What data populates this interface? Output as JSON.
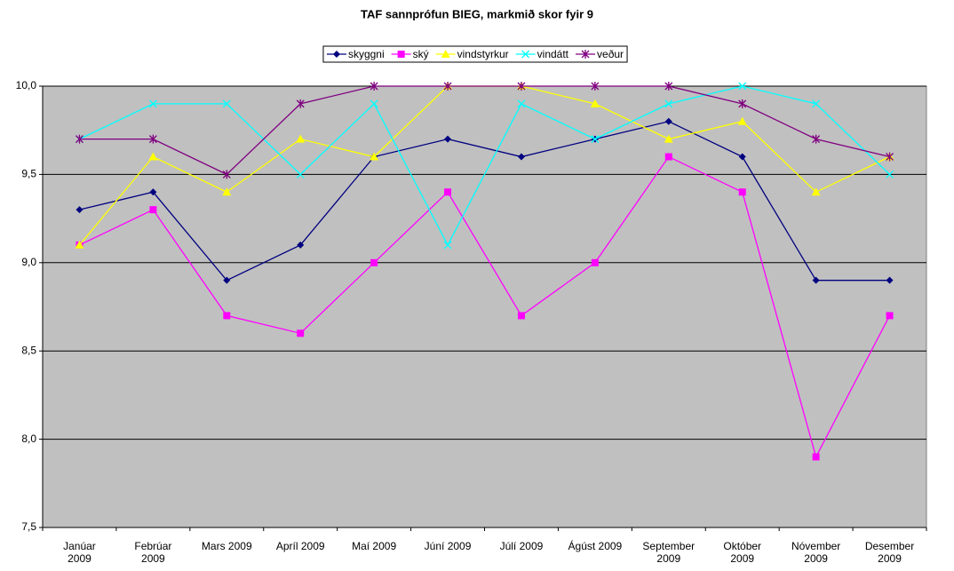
{
  "chart_data": {
    "type": "line",
    "title": "TAF sannprófun BIEG, markmið skor fyir 9",
    "categories": [
      "Janúar\n2009",
      "Febrúar\n2009",
      "Mars 2009",
      "Apríl 2009",
      "Maí 2009",
      "Júní 2009",
      "Júlí 2009",
      "Ágúst 2009",
      "September\n2009",
      "Október\n2009",
      "Nóvember\n2009",
      "Desember\n2009"
    ],
    "series": [
      {
        "name": "skyggni",
        "color": "#000080",
        "marker": "diamond",
        "values": [
          9.3,
          9.4,
          8.9,
          9.1,
          9.6,
          9.7,
          9.6,
          9.7,
          9.8,
          9.6,
          8.9,
          8.9
        ]
      },
      {
        "name": "ský",
        "color": "#ff00ff",
        "marker": "square",
        "values": [
          9.1,
          9.3,
          8.7,
          8.6,
          9.0,
          9.4,
          8.7,
          9.0,
          9.6,
          9.4,
          7.9,
          8.7
        ]
      },
      {
        "name": "vindstyrkur",
        "color": "#ffff00",
        "marker": "triangle",
        "values": [
          9.1,
          9.6,
          9.4,
          9.7,
          9.6,
          10.0,
          10.0,
          9.9,
          9.7,
          9.8,
          9.4,
          9.6
        ]
      },
      {
        "name": "vindátt",
        "color": "#00ffff",
        "marker": "x",
        "values": [
          9.7,
          9.9,
          9.9,
          9.5,
          9.9,
          9.1,
          9.9,
          9.7,
          9.9,
          10.0,
          9.9,
          9.5
        ]
      },
      {
        "name": "veður",
        "color": "#800080",
        "marker": "star",
        "values": [
          9.7,
          9.7,
          9.5,
          9.9,
          10.0,
          10.0,
          10.0,
          10.0,
          10.0,
          9.9,
          9.7,
          9.6
        ]
      }
    ],
    "ylim": [
      7.5,
      10.0
    ],
    "yticks": [
      {
        "value": 7.5,
        "label": "7,5"
      },
      {
        "value": 8.0,
        "label": "8,0"
      },
      {
        "value": 8.5,
        "label": "8,5"
      },
      {
        "value": 9.0,
        "label": "9,0"
      },
      {
        "value": 9.5,
        "label": "9,5"
      },
      {
        "value": 10.0,
        "label": "10,0"
      }
    ],
    "grid": true,
    "plot_background": "#c0c0c0",
    "legend": "top"
  }
}
